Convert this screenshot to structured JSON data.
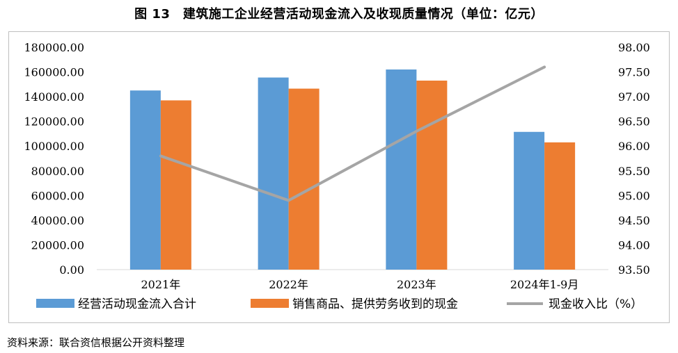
{
  "header": {
    "title": "图 13　建筑施工企业经营活动现金流入及收现质量情况（单位：亿元）"
  },
  "footer": {
    "source": "资料来源：联合资信根据公开资料整理"
  },
  "chart_data": {
    "type": "bar",
    "categories": [
      "2021年",
      "2022年",
      "2023年",
      "2024年1-9月"
    ],
    "series": [
      {
        "name": "经营活动现金流入合计",
        "type": "bar",
        "axis": "left",
        "color": "#5b9bd5",
        "values": [
          145000,
          155500,
          162000,
          111500
        ]
      },
      {
        "name": "销售商品、提供劳务收到的现金",
        "type": "bar",
        "axis": "left",
        "color": "#ed7d31",
        "values": [
          137000,
          146500,
          153000,
          103000
        ]
      },
      {
        "name": "现金收入比（%）",
        "type": "line",
        "axis": "right",
        "color": "#a5a5a5",
        "values": [
          95.8,
          94.9,
          96.3,
          97.6
        ]
      }
    ],
    "y_left": {
      "min": 0,
      "max": 180000,
      "step": 20000,
      "ticks": [
        "0.00",
        "20000.00",
        "40000.00",
        "60000.00",
        "80000.00",
        "100000.00",
        "120000.00",
        "140000.00",
        "160000.00",
        "180000.00"
      ]
    },
    "y_right": {
      "min": 93.5,
      "max": 98.0,
      "step": 0.5,
      "ticks": [
        "93.50",
        "94.00",
        "94.50",
        "95.00",
        "95.50",
        "96.00",
        "96.50",
        "97.00",
        "97.50",
        "98.00"
      ]
    },
    "grid": false,
    "legend_position": "bottom"
  }
}
